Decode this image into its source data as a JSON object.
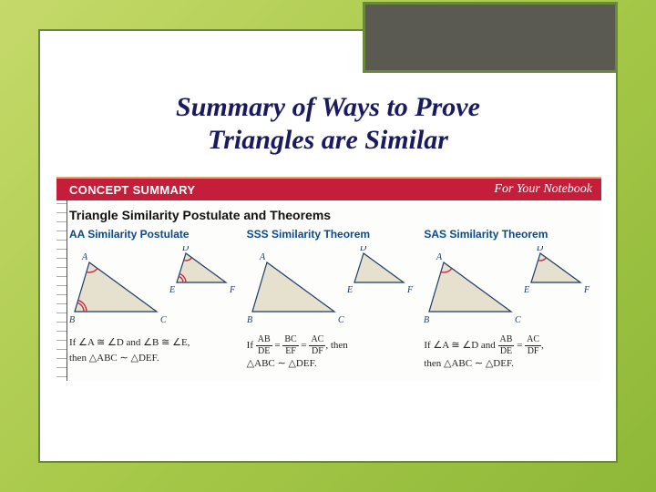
{
  "title_line1": "Summary of Ways to Prove",
  "title_line2": "Triangles are Similar",
  "banner": {
    "left": "CONCEPT SUMMARY",
    "right": "For Your Notebook"
  },
  "section_heading": "Triangle Similarity Postulate and Theorems",
  "columns": [
    {
      "title": "AA Similarity Postulate",
      "condition_html": "If ∠A ≅ ∠D and ∠B ≅ ∠E,<br>then △ABC ∼ △DEF.",
      "show_angle_arcs": true
    },
    {
      "title": "SSS Similarity Theorem",
      "condition_html": "If <span class='frac'><span class='n'>AB</span><span class='d'>DE</span></span> = <span class='frac'><span class='n'>BC</span><span class='d'>EF</span></span> = <span class='frac'><span class='n'>AC</span><span class='d'>DF</span></span>, then<br>△ABC ∼ △DEF.",
      "show_angle_arcs": false
    },
    {
      "title": "SAS Similarity Theorem",
      "condition_html": "If ∠A ≅ ∠D and <span class='frac'><span class='n'>AB</span><span class='d'>DE</span></span> = <span class='frac'><span class='n'>AC</span><span class='d'>DF</span></span>,<br>then △ABC ∼ △DEF.",
      "show_angle_arcs": true,
      "arcs_vertex_only": "A"
    }
  ],
  "colors": {
    "bg_grad_from": "#c5d96a",
    "bg_grad_to": "#8fb838",
    "card_border": "#6a8a3a",
    "corner_fill": "#5a5a52",
    "title_color": "#1a1a5e",
    "banner_bg": "#c41e3a",
    "col_title": "#0a4a8a",
    "tri_fill": "#e6e0ce",
    "tri_stroke": "#1a3a6a",
    "arc_stroke": "#c41e3a",
    "label_color": "#1a3a6a"
  },
  "diagram": {
    "big": {
      "A": [
        22,
        18
      ],
      "B": [
        6,
        72
      ],
      "C": [
        96,
        72
      ],
      "label_offsets": {
        "A": [
          -8,
          -3
        ],
        "B": [
          -6,
          12
        ],
        "C": [
          4,
          12
        ]
      }
    },
    "small": {
      "D": [
        128,
        8
      ],
      "E": [
        118,
        40
      ],
      "F": [
        172,
        40
      ],
      "label_offsets": {
        "D": [
          -4,
          -3
        ],
        "E": [
          -8,
          11
        ],
        "F": [
          4,
          11
        ]
      }
    },
    "label_fontsize": 10
  }
}
